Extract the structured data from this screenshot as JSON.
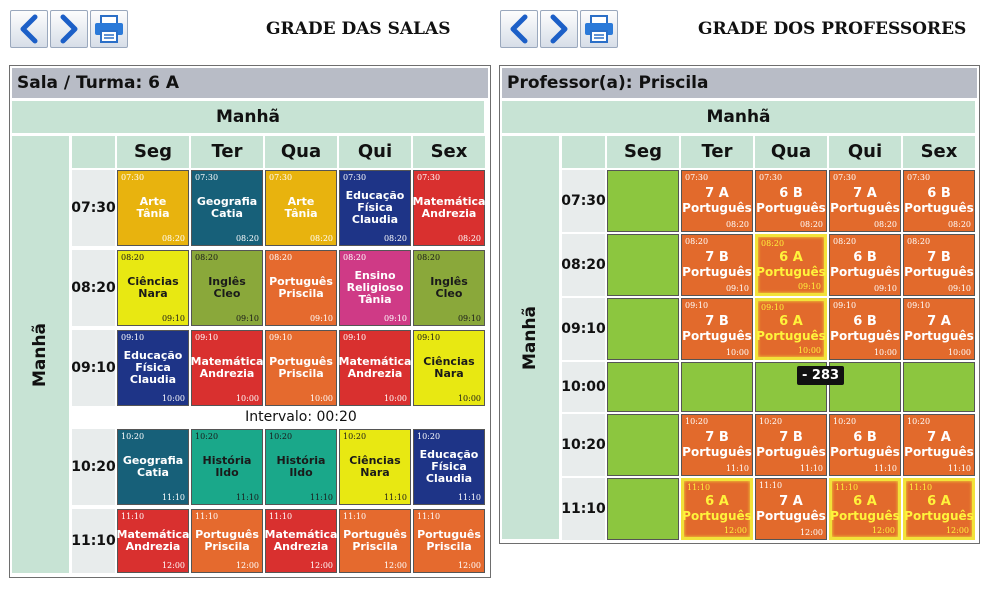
{
  "toolbar_left": {
    "prev": "chevron-left-icon",
    "next": "chevron-right-icon",
    "print": "printer-icon"
  },
  "toolbar_right": {
    "prev": "chevron-left-icon",
    "next": "chevron-right-icon",
    "print": "printer-icon"
  },
  "salas": {
    "title": "GRADE DAS SALAS",
    "header": "Sala / Turma: 6 A",
    "period": "Manhã",
    "side_label": "Manhã",
    "days": [
      "Seg",
      "Ter",
      "Qua",
      "Qui",
      "Sex"
    ],
    "times": [
      "07:30",
      "08:20",
      "09:10",
      "10:20",
      "11:10"
    ],
    "interval": "Intervalo: 00:20",
    "rows": [
      [
        {
          "start": "07:30",
          "end": "08:20",
          "subject": "Arte\nTânia",
          "color": "#e8b30e"
        },
        {
          "start": "07:30",
          "end": "08:20",
          "subject": "Geografia\nCatia",
          "color": "#176079"
        },
        {
          "start": "07:30",
          "end": "08:20",
          "subject": "Arte\nTânia",
          "color": "#e8b30e"
        },
        {
          "start": "07:30",
          "end": "08:20",
          "subject": "Educação\nFísica\nClaudia",
          "color": "#1e3487"
        },
        {
          "start": "07:30",
          "end": "08:20",
          "subject": "Matemática\nAndrezia",
          "color": "#d9302f"
        }
      ],
      [
        {
          "start": "08:20",
          "end": "09:10",
          "subject": "Ciências\nNara",
          "color": "#e8e812",
          "dark": true
        },
        {
          "start": "08:20",
          "end": "09:10",
          "subject": "Inglês\nCleo",
          "color": "#8aa83a",
          "dark": true
        },
        {
          "start": "08:20",
          "end": "09:10",
          "subject": "Português\nPriscila",
          "color": "#e56a2e"
        },
        {
          "start": "08:20",
          "end": "09:10",
          "subject": "Ensino\nReligioso\nTânia",
          "color": "#cf3a86"
        },
        {
          "start": "08:20",
          "end": "09:10",
          "subject": "Inglês\nCleo",
          "color": "#8aa83a",
          "dark": true
        }
      ],
      [
        {
          "start": "09:10",
          "end": "10:00",
          "subject": "Educação\nFísica\nClaudia",
          "color": "#1e3487"
        },
        {
          "start": "09:10",
          "end": "10:00",
          "subject": "Matemática\nAndrezia",
          "color": "#d9302f"
        },
        {
          "start": "09:10",
          "end": "10:00",
          "subject": "Português\nPriscila",
          "color": "#e56a2e"
        },
        {
          "start": "09:10",
          "end": "10:00",
          "subject": "Matemática\nAndrezia",
          "color": "#d9302f"
        },
        {
          "start": "09:10",
          "end": "10:00",
          "subject": "Ciências\nNara",
          "color": "#e8e812",
          "dark": true
        }
      ],
      [
        {
          "start": "10:20",
          "end": "11:10",
          "subject": "Geografia\nCatia",
          "color": "#176079"
        },
        {
          "start": "10:20",
          "end": "11:10",
          "subject": "História\nIldo",
          "color": "#1aa88a",
          "dark": true
        },
        {
          "start": "10:20",
          "end": "11:10",
          "subject": "História\nIldo",
          "color": "#1aa88a",
          "dark": true
        },
        {
          "start": "10:20",
          "end": "11:10",
          "subject": "Ciências\nNara",
          "color": "#e8e812",
          "dark": true
        },
        {
          "start": "10:20",
          "end": "11:10",
          "subject": "Educação\nFísica\nClaudia",
          "color": "#1e3487"
        }
      ],
      [
        {
          "start": "11:10",
          "end": "12:00",
          "subject": "Matemática\nAndrezia",
          "color": "#d9302f"
        },
        {
          "start": "11:10",
          "end": "12:00",
          "subject": "Português\nPriscila",
          "color": "#e56a2e"
        },
        {
          "start": "11:10",
          "end": "12:00",
          "subject": "Matemática\nAndrezia",
          "color": "#d9302f"
        },
        {
          "start": "11:10",
          "end": "12:00",
          "subject": "Português\nPriscila",
          "color": "#e56a2e"
        },
        {
          "start": "11:10",
          "end": "12:00",
          "subject": "Português\nPriscila",
          "color": "#e56a2e"
        }
      ]
    ]
  },
  "professores": {
    "title": "GRADE DOS PROFESSORES",
    "header": "Professor(a): Priscila",
    "period": "Manhã",
    "side_label": "Manhã",
    "days": [
      "Seg",
      "Ter",
      "Qua",
      "Qui",
      "Sex"
    ],
    "times": [
      "07:30",
      "08:20",
      "09:10",
      "10:00",
      "10:20",
      "11:10"
    ],
    "tooltip": "- 283",
    "rows": [
      [
        null,
        {
          "start": "07:30",
          "end": "08:20",
          "cls": "7 A",
          "subject": "Português"
        },
        {
          "start": "07:30",
          "end": "08:20",
          "cls": "6 B",
          "subject": "Português"
        },
        {
          "start": "07:30",
          "end": "08:20",
          "cls": "7 A",
          "subject": "Português"
        },
        {
          "start": "07:30",
          "end": "08:20",
          "cls": "6 B",
          "subject": "Português"
        }
      ],
      [
        null,
        {
          "start": "08:20",
          "end": "09:10",
          "cls": "7 B",
          "subject": "Português"
        },
        {
          "start": "08:20",
          "end": "09:10",
          "cls": "6 A",
          "subject": "Português",
          "hl": true
        },
        {
          "start": "08:20",
          "end": "09:10",
          "cls": "6 B",
          "subject": "Português"
        },
        {
          "start": "08:20",
          "end": "09:10",
          "cls": "7 B",
          "subject": "Português"
        }
      ],
      [
        null,
        {
          "start": "09:10",
          "end": "10:00",
          "cls": "7 B",
          "subject": "Português"
        },
        {
          "start": "09:10",
          "end": "10:00",
          "cls": "6 A",
          "subject": "Português",
          "hl": true
        },
        {
          "start": "09:10",
          "end": "10:00",
          "cls": "6 B",
          "subject": "Português"
        },
        {
          "start": "09:10",
          "end": "10:00",
          "cls": "7 A",
          "subject": "Português"
        }
      ],
      [
        null,
        null,
        null,
        null,
        null
      ],
      [
        null,
        {
          "start": "10:20",
          "end": "11:10",
          "cls": "7 B",
          "subject": "Português"
        },
        {
          "start": "10:20",
          "end": "11:10",
          "cls": "7 B",
          "subject": "Português"
        },
        {
          "start": "10:20",
          "end": "11:10",
          "cls": "6 B",
          "subject": "Português"
        },
        {
          "start": "10:20",
          "end": "11:10",
          "cls": "7 A",
          "subject": "Português"
        }
      ],
      [
        null,
        {
          "start": "11:10",
          "end": "12:00",
          "cls": "6 A",
          "subject": "Português",
          "hl": true
        },
        {
          "start": "11:10",
          "end": "12:00",
          "cls": "7 A",
          "subject": "Português"
        },
        {
          "start": "11:10",
          "end": "12:00",
          "cls": "6 A",
          "subject": "Português",
          "hl": true
        },
        {
          "start": "11:10",
          "end": "12:00",
          "cls": "6 A",
          "subject": "Português",
          "hl": true
        }
      ]
    ]
  },
  "colors": {
    "prof_lesson": "#e26a2c",
    "free": "#8cc63f",
    "highlight": "#f2e23a",
    "header_green": "#c7e3d4"
  }
}
